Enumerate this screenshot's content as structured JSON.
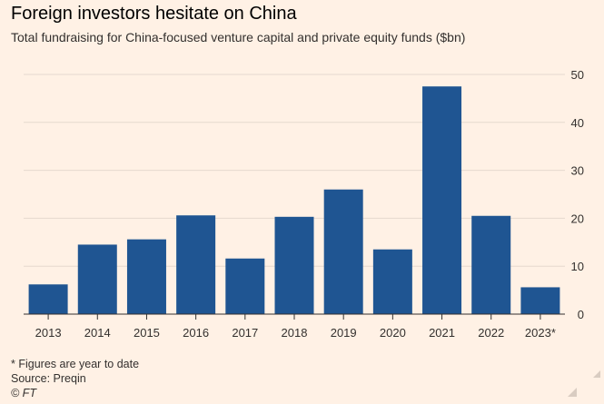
{
  "header": {
    "title": "Foreign investors hesitate on China",
    "subtitle": "Total fundraising for China-focused venture capital and private equity funds ($bn)"
  },
  "footer": {
    "note": "* Figures are year to date",
    "source": "Source: Preqin",
    "copyright": "© FT"
  },
  "colors": {
    "background": "#fff1e5",
    "bar": "#1f5592",
    "gridline": "#e6d9ce",
    "axis": "#33302e",
    "text": "#33302e"
  },
  "chart_data": {
    "type": "bar",
    "title": "Foreign investors hesitate on China",
    "subtitle": "Total fundraising for China-focused venture capital and private equity funds ($bn)",
    "categories": [
      "2013",
      "2014",
      "2015",
      "2016",
      "2017",
      "2018",
      "2019",
      "2020",
      "2021",
      "2022",
      "2023*"
    ],
    "values": [
      6.2,
      14.5,
      15.6,
      20.6,
      11.6,
      20.3,
      26.0,
      13.5,
      47.5,
      20.5,
      5.6
    ],
    "xlabel": "",
    "ylabel": "",
    "ylim": [
      0,
      50
    ],
    "yticks": [
      0,
      10,
      20,
      30,
      40,
      50
    ],
    "grid": true,
    "y_axis_position": "right"
  }
}
